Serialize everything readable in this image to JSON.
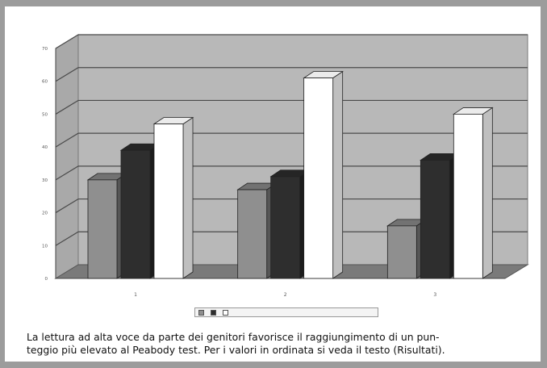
{
  "caption": {
    "line1": "La lettura ad alta voce da parte dei genitori favorisce il raggiungimento di un pun-",
    "line2": "teggio più elevato al Peabody test. Per i valori in ordinata si veda il testo (Risultati)."
  },
  "colors": {
    "frame": "#9c9c9c",
    "wall": "#b8b8b8",
    "floor": "#7a7a7a",
    "series": [
      "#8f8f8f",
      "#2e2e2e",
      "#ffffff"
    ]
  },
  "chart_data": {
    "type": "bar",
    "categories": [
      "1",
      "2",
      "3"
    ],
    "series": [
      {
        "name": "",
        "values": [
          30,
          27,
          16
        ]
      },
      {
        "name": "",
        "values": [
          39,
          31,
          36
        ]
      },
      {
        "name": "",
        "values": [
          47,
          61,
          50
        ]
      }
    ],
    "yticks": [
      "0",
      "10",
      "20",
      "30",
      "40",
      "50",
      "60",
      "70"
    ],
    "ylim": [
      0,
      70
    ],
    "grid": true,
    "legend": "bottom"
  }
}
